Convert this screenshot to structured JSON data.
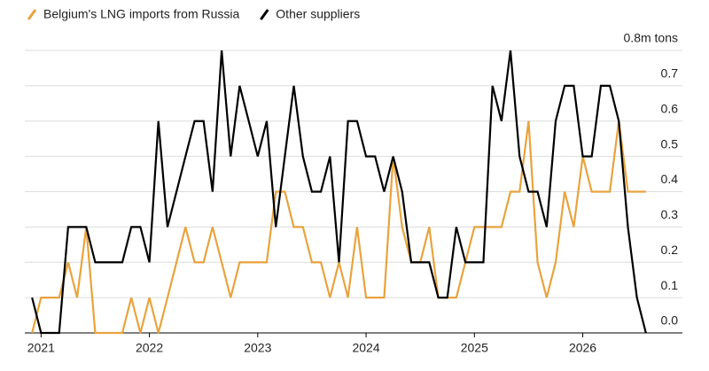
{
  "chart_data": {
    "type": "line",
    "x": [
      2020.917,
      2021,
      2021.083,
      2021.167,
      2021.25,
      2021.333,
      2021.417,
      2021.5,
      2021.583,
      2021.667,
      2021.75,
      2021.833,
      2021.917,
      2022,
      2022.083,
      2022.167,
      2022.25,
      2022.333,
      2022.417,
      2022.5,
      2022.583,
      2022.667,
      2022.75,
      2022.833,
      2022.917,
      2023,
      2023.083,
      2023.167,
      2023.25,
      2023.333,
      2023.417,
      2023.5,
      2023.583,
      2023.667,
      2023.75,
      2023.833,
      2023.917,
      2024,
      2024.083,
      2024.167,
      2024.25,
      2024.333,
      2024.417,
      2024.5,
      2024.583,
      2024.667,
      2024.75,
      2024.833,
      2024.917,
      2025,
      2025.083,
      2025.167,
      2025.25,
      2025.333,
      2025.417,
      2025.5,
      2025.583,
      2025.667,
      2025.75,
      2025.833,
      2025.917,
      2026,
      2026.083,
      2026.167,
      2026.25,
      2026.333,
      2026.417,
      2026.5,
      2026.583
    ],
    "series": [
      {
        "name": "Belgium's LNG imports from Russia",
        "color": "#e8a33d",
        "values": [
          0,
          0.1,
          0.1,
          0.1,
          0.2,
          0.1,
          0.3,
          0,
          0,
          0,
          0,
          0.1,
          0,
          0.1,
          0,
          0.1,
          0.2,
          0.3,
          0.2,
          0.2,
          0.3,
          0.2,
          0.1,
          0.2,
          0.2,
          0.2,
          0.2,
          0.4,
          0.4,
          0.3,
          0.3,
          0.2,
          0.2,
          0.1,
          0.2,
          0.1,
          0.3,
          0.1,
          0.1,
          0.1,
          0.5,
          0.3,
          0.2,
          0.2,
          0.3,
          0.1,
          0.1,
          0.1,
          0.2,
          0.3,
          0.3,
          0.3,
          0.3,
          0.4,
          0.4,
          0.6,
          0.2,
          0.1,
          0.2,
          0.4,
          0.3,
          0.5,
          0.4,
          0.4,
          0.4,
          0.6,
          0.4,
          0.4,
          0.4
        ]
      },
      {
        "name": "Other suppliers",
        "color": "#000000",
        "values": [
          0.1,
          0,
          0,
          0,
          0.3,
          0.3,
          0.3,
          0.2,
          0.2,
          0.2,
          0.2,
          0.3,
          0.3,
          0.2,
          0.6,
          0.3,
          0.4,
          0.5,
          0.6,
          0.6,
          0.4,
          0.8,
          0.5,
          0.7,
          0.6,
          0.5,
          0.6,
          0.3,
          0.5,
          0.7,
          0.5,
          0.4,
          0.4,
          0.5,
          0.2,
          0.6,
          0.6,
          0.5,
          0.5,
          0.4,
          0.5,
          0.4,
          0.2,
          0.2,
          0.2,
          0.1,
          0.1,
          0.3,
          0.2,
          0.2,
          0.2,
          0.7,
          0.6,
          0.8,
          0.5,
          0.4,
          0.4,
          0.3,
          0.6,
          0.7,
          0.7,
          0.5,
          0.5,
          0.7,
          0.7,
          0.6,
          0.3,
          0.1,
          0
        ]
      }
    ],
    "xlim": [
      2020.85,
      2026.92
    ],
    "xticks": [
      2021,
      2022,
      2023,
      2024,
      2025,
      2026
    ],
    "ylim": [
      0,
      0.8
    ],
    "yticks": [
      0.0,
      0.1,
      0.2,
      0.3,
      0.4,
      0.5,
      0.6,
      0.7,
      {
        "value": 0.8,
        "label": "0.8m tons"
      }
    ],
    "grid": true
  }
}
